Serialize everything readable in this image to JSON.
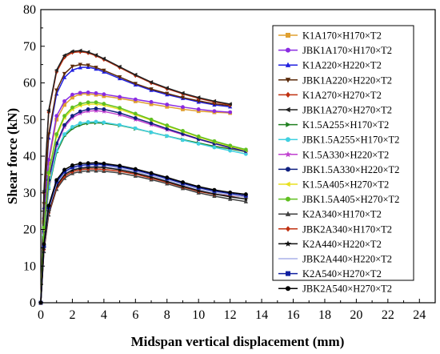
{
  "chart_data": {
    "type": "line",
    "xlabel": "Midspan vertical displacement (mm)",
    "ylabel": "Shear force (kN)",
    "xlim": [
      0,
      25
    ],
    "ylim": [
      0,
      80
    ],
    "xticks": [
      "0",
      "2",
      "4",
      "6",
      "8",
      "10",
      "12",
      "14",
      "16",
      "18",
      "20",
      "22",
      "24"
    ],
    "yticks": [
      "0",
      "10",
      "20",
      "30",
      "40",
      "50",
      "60",
      "70",
      "80"
    ],
    "grid": false,
    "legend_position": "right",
    "series": [
      {
        "name": "K1A170×H170×T2",
        "color": "#e0a030",
        "marker": "square",
        "x": [
          0,
          0.2,
          0.5,
          1,
          1.5,
          2,
          2.5,
          3,
          3.5,
          4,
          5,
          6,
          7,
          8,
          9,
          10,
          11,
          12
        ],
        "y": [
          0,
          22,
          38,
          50,
          54,
          56,
          57,
          57,
          56.8,
          56.4,
          55.8,
          55,
          54.2,
          53.5,
          52.8,
          52.3,
          52,
          51.8
        ]
      },
      {
        "name": "JBK1A170×H170×T2",
        "color": "#8a2be2",
        "marker": "circle",
        "x": [
          0,
          0.2,
          0.5,
          1,
          1.5,
          2,
          2.5,
          3,
          3.5,
          4,
          5,
          6,
          7,
          8,
          9,
          10,
          11,
          12
        ],
        "y": [
          0,
          23,
          39,
          51,
          55,
          56.8,
          57.3,
          57.4,
          57.2,
          56.9,
          56.2,
          55.5,
          54.8,
          54.1,
          53.4,
          52.8,
          52.3,
          52
        ]
      },
      {
        "name": "K1A220×H220×T2",
        "color": "#2020e0",
        "marker": "triangle",
        "x": [
          0,
          0.2,
          0.5,
          1,
          1.5,
          2,
          2.5,
          3,
          3.5,
          4,
          5,
          6,
          7,
          8,
          9,
          10,
          11,
          12
        ],
        "y": [
          0,
          26,
          45,
          57,
          61.5,
          63.5,
          64.2,
          64.3,
          63.8,
          63,
          61.2,
          59.5,
          58,
          56.8,
          55.8,
          54.8,
          54,
          53.5
        ]
      },
      {
        "name": "JBK1A220×H220×T2",
        "color": "#5a2a0a",
        "marker": "tri-down",
        "x": [
          0,
          0.2,
          0.5,
          1,
          1.5,
          2,
          2.5,
          3,
          3.5,
          4,
          5,
          6,
          7,
          8,
          9,
          10,
          11,
          12
        ],
        "y": [
          0,
          27,
          46,
          58,
          62.5,
          64.5,
          65,
          64.8,
          64.2,
          63.4,
          61.6,
          59.8,
          58.3,
          57.1,
          56,
          55.1,
          54.3,
          53.8
        ]
      },
      {
        "name": "K1A270×H270×T2",
        "color": "#c03010",
        "marker": "diamond",
        "x": [
          0,
          0.2,
          0.5,
          1,
          1.5,
          2,
          2.5,
          3,
          3.5,
          4,
          5,
          6,
          7,
          8,
          9,
          10,
          11,
          12
        ],
        "y": [
          0,
          30,
          52,
          63,
          67,
          68.3,
          68.5,
          68.2,
          67.4,
          66.4,
          64.2,
          62,
          60,
          58.4,
          57,
          55.8,
          54.8,
          54
        ]
      },
      {
        "name": "JBK1A270×H270×T2",
        "color": "#202020",
        "marker": "tri-left",
        "x": [
          0,
          0.2,
          0.5,
          1,
          1.5,
          2,
          2.5,
          3,
          3.5,
          4,
          5,
          6,
          7,
          8,
          9,
          10,
          11,
          12
        ],
        "y": [
          0,
          30.5,
          52.5,
          63.5,
          67.5,
          68.6,
          68.8,
          68.4,
          67.6,
          66.6,
          64.4,
          62.2,
          60.2,
          58.6,
          57.2,
          56,
          55,
          54.2
        ]
      },
      {
        "name": "K1.5A255×H170×T2",
        "color": "#208020",
        "marker": "tri-right",
        "x": [
          0,
          0.2,
          0.5,
          1,
          1.5,
          2,
          2.5,
          3,
          3.5,
          4,
          5,
          6,
          7,
          8,
          9,
          10,
          11,
          12,
          13
        ],
        "y": [
          0,
          18,
          31,
          41,
          45.5,
          47.5,
          48.5,
          49,
          49.1,
          49,
          48.4,
          47.5,
          46.5,
          45.5,
          44.5,
          43.6,
          42.7,
          42,
          41.2
        ]
      },
      {
        "name": "JBK1.5A255×H170×T2",
        "color": "#40d0e0",
        "marker": "hexagon",
        "x": [
          0,
          0.2,
          0.5,
          1,
          1.5,
          2,
          2.5,
          3,
          3.5,
          4,
          5,
          6,
          7,
          8,
          9,
          10,
          11,
          12,
          13
        ],
        "y": [
          0,
          18.5,
          31.5,
          41.5,
          46,
          48,
          49,
          49.3,
          49.4,
          49.2,
          48.5,
          47.6,
          46.5,
          45.5,
          44.4,
          43.4,
          42.4,
          41.5,
          40.6
        ]
      },
      {
        "name": "K1.5A330×H220×T2",
        "color": "#c040d0",
        "marker": "star",
        "x": [
          0,
          0.2,
          0.5,
          1,
          1.5,
          2,
          2.5,
          3,
          3.5,
          4,
          5,
          6,
          7,
          8,
          9,
          10,
          11,
          12,
          13
        ],
        "y": [
          0,
          19,
          33,
          43,
          48,
          50.5,
          51.7,
          52.3,
          52.4,
          52.2,
          51.3,
          50,
          48.6,
          47.2,
          45.9,
          44.6,
          43.4,
          42.3,
          41.3
        ]
      },
      {
        "name": "JBK1.5A330×H220×T2",
        "color": "#102080",
        "marker": "circle",
        "x": [
          0,
          0.2,
          0.5,
          1,
          1.5,
          2,
          2.5,
          3,
          3.5,
          4,
          5,
          6,
          7,
          8,
          9,
          10,
          11,
          12,
          13
        ],
        "y": [
          0,
          19.5,
          33.5,
          43.5,
          48.5,
          51,
          52.2,
          52.8,
          53,
          52.8,
          51.8,
          50.4,
          49,
          47.5,
          46.1,
          44.7,
          43.5,
          42.4,
          41.4
        ]
      },
      {
        "name": "K1.5A405×H270×T2",
        "color": "#e8e020",
        "marker": "tri-left",
        "x": [
          0,
          0.2,
          0.5,
          1,
          1.5,
          2,
          2.5,
          3,
          3.5,
          4,
          5,
          6,
          7,
          8,
          9,
          10,
          11,
          12,
          13
        ],
        "y": [
          0,
          20,
          35,
          45.5,
          50.5,
          52.8,
          53.8,
          54.2,
          54.2,
          53.9,
          52.8,
          51.3,
          49.8,
          48.2,
          46.7,
          45.2,
          43.9,
          42.7,
          41.6
        ]
      },
      {
        "name": "JBK1.5A405×H270×T2",
        "color": "#60c020",
        "marker": "hexagon",
        "x": [
          0,
          0.2,
          0.5,
          1,
          1.5,
          2,
          2.5,
          3,
          3.5,
          4,
          5,
          6,
          7,
          8,
          9,
          10,
          11,
          12,
          13
        ],
        "y": [
          0,
          20.5,
          35.5,
          46,
          51,
          53.3,
          54.3,
          54.7,
          54.7,
          54.3,
          53.2,
          51.6,
          50,
          48.4,
          46.9,
          45.4,
          44.1,
          42.9,
          41.8
        ]
      },
      {
        "name": "K2A340×H170×T2",
        "color": "#404040",
        "marker": "triangle",
        "x": [
          0,
          0.2,
          0.5,
          1,
          1.5,
          2,
          2.5,
          3,
          3.5,
          4,
          5,
          6,
          7,
          8,
          9,
          10,
          11,
          12,
          13
        ],
        "y": [
          0,
          14,
          24,
          31,
          34,
          35.3,
          35.8,
          36,
          36,
          35.9,
          35.4,
          34.6,
          33.6,
          32.5,
          31.2,
          30,
          29.1,
          28.3,
          27.6
        ]
      },
      {
        "name": "JBK2A340×H170×T2",
        "color": "#c03010",
        "marker": "diamond",
        "x": [
          0,
          0.2,
          0.5,
          1,
          1.5,
          2,
          2.5,
          3,
          3.5,
          4,
          5,
          6,
          7,
          8,
          9,
          10,
          11,
          12,
          13
        ],
        "y": [
          0,
          14.5,
          24.5,
          31.5,
          34.5,
          35.8,
          36.3,
          36.5,
          36.5,
          36.4,
          35.9,
          35.1,
          34,
          32.9,
          31.6,
          30.4,
          29.6,
          29.2,
          28.9
        ]
      },
      {
        "name": "K2A440×H220×T2",
        "color": "#101010",
        "marker": "star",
        "x": [
          0,
          0.2,
          0.5,
          1,
          1.5,
          2,
          2.5,
          3,
          3.5,
          4,
          5,
          6,
          7,
          8,
          9,
          10,
          11,
          12,
          13
        ],
        "y": [
          0,
          15,
          25,
          32,
          35,
          36.2,
          36.7,
          36.9,
          37,
          36.9,
          36.3,
          35.4,
          34.3,
          33.1,
          31.8,
          30.6,
          29.7,
          28.9,
          28.3
        ]
      },
      {
        "name": "JBK2A440×H220×T2",
        "color": "#aab0e8",
        "marker": "none",
        "x": [
          0,
          0.2,
          0.5,
          1,
          1.5,
          2,
          2.5,
          3,
          3.5,
          4,
          5,
          6,
          7,
          8,
          9,
          10,
          11,
          12,
          13
        ],
        "y": [
          0,
          15.3,
          25.5,
          32.5,
          35.4,
          36.6,
          37.1,
          37.3,
          37.4,
          37.3,
          36.7,
          35.8,
          34.7,
          33.5,
          32.2,
          31,
          30.1,
          29.4,
          28.8
        ]
      },
      {
        "name": "K2A540×H270×T2",
        "color": "#1020a0",
        "marker": "square",
        "x": [
          0,
          0.2,
          0.5,
          1,
          1.5,
          2,
          2.5,
          3,
          3.5,
          4,
          5,
          6,
          7,
          8,
          9,
          10,
          11,
          12,
          13
        ],
        "y": [
          0,
          15.5,
          26,
          33,
          35.8,
          37,
          37.5,
          37.7,
          37.8,
          37.7,
          37.1,
          36.2,
          35.1,
          33.9,
          32.6,
          31.4,
          30.5,
          29.8,
          29.2
        ]
      },
      {
        "name": "JBK2A540×H270×T2",
        "color": "#000000",
        "marker": "circle",
        "x": [
          0,
          0.2,
          0.5,
          1,
          1.5,
          2,
          2.5,
          3,
          3.5,
          4,
          5,
          6,
          7,
          8,
          9,
          10,
          11,
          12,
          13
        ],
        "y": [
          0,
          16,
          26.5,
          33.5,
          36.3,
          37.5,
          38,
          38.1,
          38.2,
          38,
          37.4,
          36.5,
          35.4,
          34.2,
          32.9,
          31.7,
          30.8,
          30.1,
          29.6
        ]
      }
    ]
  }
}
